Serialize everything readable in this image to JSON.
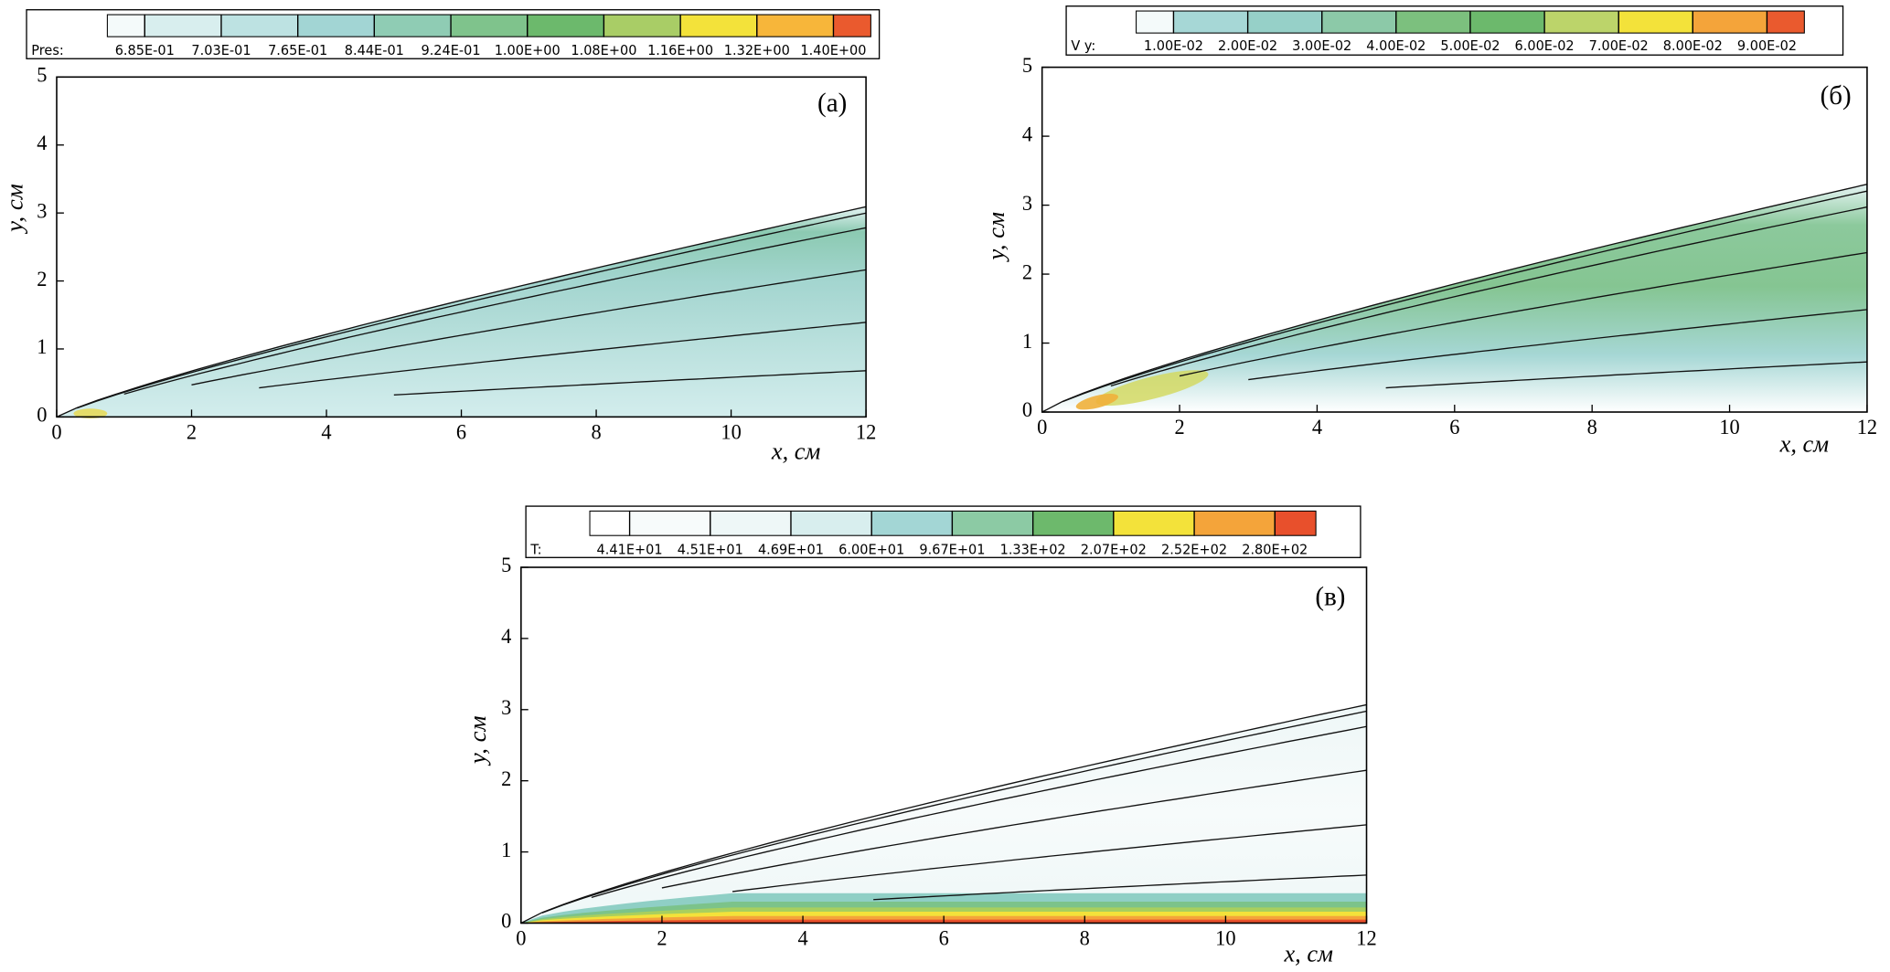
{
  "chart_data": [
    {
      "type": "contour",
      "panel_label": "(а)",
      "xlabel": "x, см",
      "ylabel": "y, см",
      "xlim": [
        0,
        12
      ],
      "ylim": [
        0,
        5
      ],
      "xticks": [
        0,
        2,
        4,
        6,
        8,
        10,
        12
      ],
      "yticks": [
        0,
        1,
        2,
        3,
        4,
        5
      ],
      "colorbar_label": "Pres:",
      "levels": [
        {
          "value": 0.685,
          "label": "6.85E-01"
        },
        {
          "value": 0.703,
          "label": "7.03E-01"
        },
        {
          "value": 0.765,
          "label": "7.65E-01"
        },
        {
          "value": 0.844,
          "label": "8.44E-01"
        },
        {
          "value": 0.924,
          "label": "9.24E-01"
        },
        {
          "value": 1.0,
          "label": "1.00E+00"
        },
        {
          "value": 1.08,
          "label": "1.08E+00"
        },
        {
          "value": 1.16,
          "label": "1.16E+00"
        },
        {
          "value": 1.32,
          "label": "1.32E+00"
        },
        {
          "value": 1.4,
          "label": "1.40E+00"
        }
      ],
      "colors": [
        "#f4fafa",
        "#d8eeee",
        "#bde2e2",
        "#a2d5d4",
        "#8fccb4",
        "#7fc38c",
        "#6cb96c",
        "#a9cd66",
        "#f3e23a",
        "#f7b63a",
        "#ea5a2e"
      ]
    },
    {
      "type": "contour",
      "panel_label": "(б)",
      "xlabel": "x, см",
      "ylabel": "y, см",
      "xlim": [
        0,
        12
      ],
      "ylim": [
        0,
        5
      ],
      "xticks": [
        0,
        2,
        4,
        6,
        8,
        10,
        12
      ],
      "yticks": [
        0,
        1,
        2,
        3,
        4,
        5
      ],
      "colorbar_label": "V y:",
      "levels": [
        {
          "value": 0.01,
          "label": "1.00E-02"
        },
        {
          "value": 0.02,
          "label": "2.00E-02"
        },
        {
          "value": 0.03,
          "label": "3.00E-02"
        },
        {
          "value": 0.04,
          "label": "4.00E-02"
        },
        {
          "value": 0.05,
          "label": "5.00E-02"
        },
        {
          "value": 0.06,
          "label": "6.00E-02"
        },
        {
          "value": 0.07,
          "label": "7.00E-02"
        },
        {
          "value": 0.08,
          "label": "8.00E-02"
        },
        {
          "value": 0.09,
          "label": "9.00E-02"
        }
      ],
      "colors": [
        "#f4fafa",
        "#a6d7d6",
        "#96d0c8",
        "#8cc9a8",
        "#7cc07e",
        "#6cb96c",
        "#bcd46a",
        "#f3e23a",
        "#f4a43a",
        "#ea5a2e"
      ]
    },
    {
      "type": "contour",
      "panel_label": "(в)",
      "xlabel": "x, см",
      "ylabel": "y, см",
      "xlim": [
        0,
        12
      ],
      "ylim": [
        0,
        5
      ],
      "xticks": [
        0,
        2,
        4,
        6,
        8,
        10,
        12
      ],
      "yticks": [
        0,
        1,
        2,
        3,
        4,
        5
      ],
      "colorbar_label": "T:",
      "levels": [
        {
          "value": 44.1,
          "label": "4.41E+01"
        },
        {
          "value": 45.1,
          "label": "4.51E+01"
        },
        {
          "value": 46.9,
          "label": "4.69E+01"
        },
        {
          "value": 60.0,
          "label": "6.00E+01"
        },
        {
          "value": 96.7,
          "label": "9.67E+01"
        },
        {
          "value": 133,
          "label": "1.33E+02"
        },
        {
          "value": 207,
          "label": "2.07E+02"
        },
        {
          "value": 252,
          "label": "2.52E+02"
        },
        {
          "value": 280,
          "label": "2.80E+02"
        }
      ],
      "colors": [
        "#ffffff",
        "#f7fbfb",
        "#eef7f7",
        "#d8eeee",
        "#a3d6d5",
        "#8ccaa4",
        "#6db96c",
        "#f3e23a",
        "#f4a43a",
        "#e8502c"
      ]
    }
  ]
}
